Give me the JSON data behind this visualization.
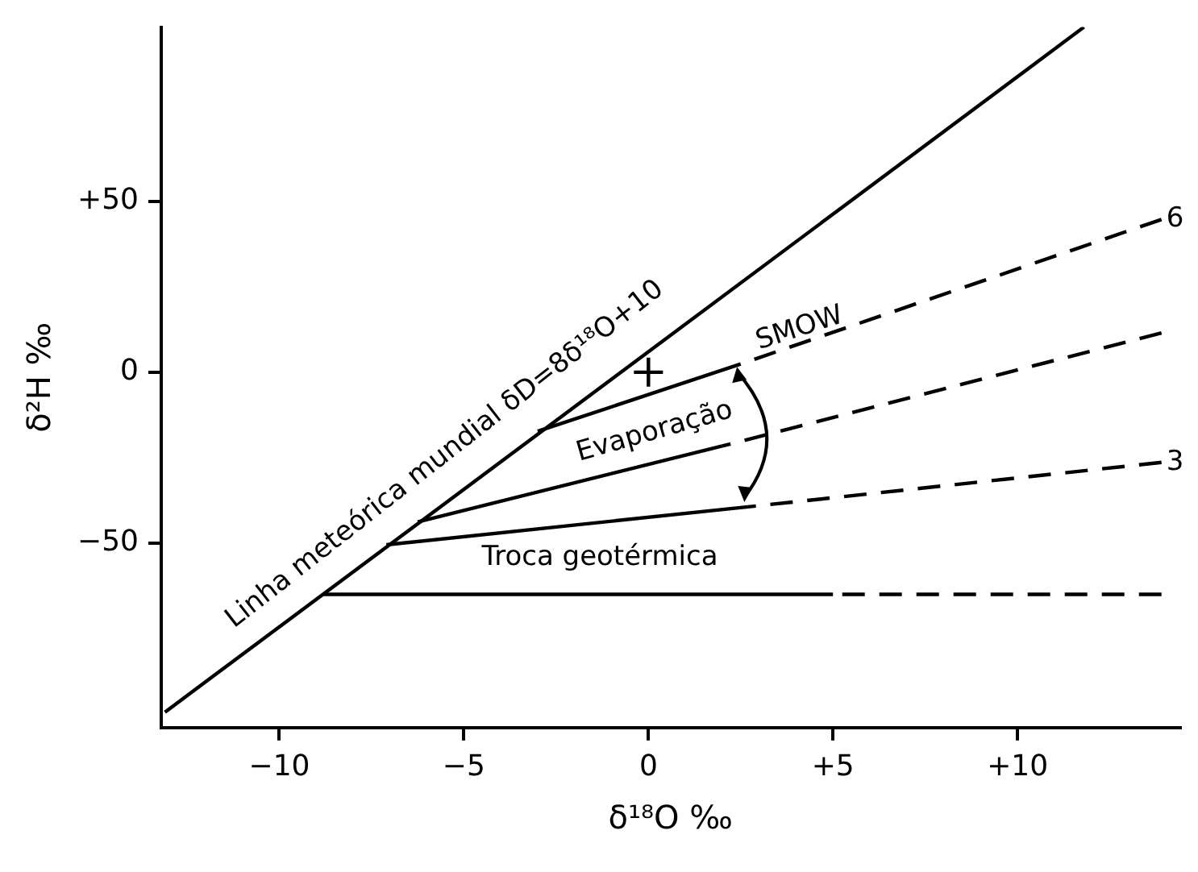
{
  "chart_data": {
    "type": "line",
    "xlabel": "δ¹⁸O ‰",
    "ylabel": "δ²H ‰",
    "xlim": [
      -13.2,
      14.4
    ],
    "ylim": [
      -104,
      101
    ],
    "xticks": [
      {
        "value": -10,
        "label": "−10"
      },
      {
        "value": -5,
        "label": "−5"
      },
      0,
      {
        "value": 5,
        "label": "+5"
      },
      {
        "value": 10,
        "label": "+10"
      }
    ],
    "yticks": [
      {
        "value": 50,
        "label": "+50"
      },
      0,
      {
        "value": -50,
        "label": "−50"
      }
    ],
    "grid": false,
    "legend": false,
    "marker": "none",
    "series": [
      {
        "color": "#000000",
        "line_style": "solid",
        "x": [
          -13.1,
          11.8
        ],
        "values": [
          -99.5,
          101
        ]
      },
      {
        "color": "#000000",
        "line_style": "solid",
        "x": [
          -3.0,
          2.5
        ],
        "values": [
          -17.3,
          2.4
        ]
      },
      {
        "name": "6",
        "color": "#000000",
        "line_style": "dashed",
        "x": [
          2.5,
          13.9
        ],
        "values": [
          2.4,
          44.7
        ]
      },
      {
        "color": "#000000",
        "line_style": "solid",
        "x": [
          -6.25,
          2.0
        ],
        "values": [
          -43.8,
          -21.6
        ]
      },
      {
        "color": "#000000",
        "line_style": "dashed",
        "x": [
          2.0,
          13.9
        ],
        "values": [
          -21.6,
          11.5
        ]
      },
      {
        "color": "#000000",
        "line_style": "solid",
        "x": [
          -7.1,
          2.7
        ],
        "values": [
          -50.5,
          -39.4
        ]
      },
      {
        "name": "3",
        "color": "#000000",
        "line_style": "dashed",
        "x": [
          2.7,
          13.9
        ],
        "values": [
          -39.4,
          -26.4
        ]
      },
      {
        "color": "#000000",
        "line_style": "solid",
        "x": [
          -8.8,
          5.0
        ],
        "values": [
          -65,
          -65
        ]
      },
      {
        "color": "#000000",
        "line_style": "dashed",
        "x": [
          5.0,
          13.9
        ],
        "values": [
          -65,
          -65
        ]
      },
      {
        "type": "scatter",
        "color": "#000000",
        "marker": "cross",
        "x": [
          0
        ],
        "values": [
          0
        ]
      }
    ],
    "annotations": [
      "Linha meteórica mundial δD=8δ¹⁸O+10",
      "Evaporação",
      "Troca geotérmica",
      "SMOW"
    ]
  }
}
